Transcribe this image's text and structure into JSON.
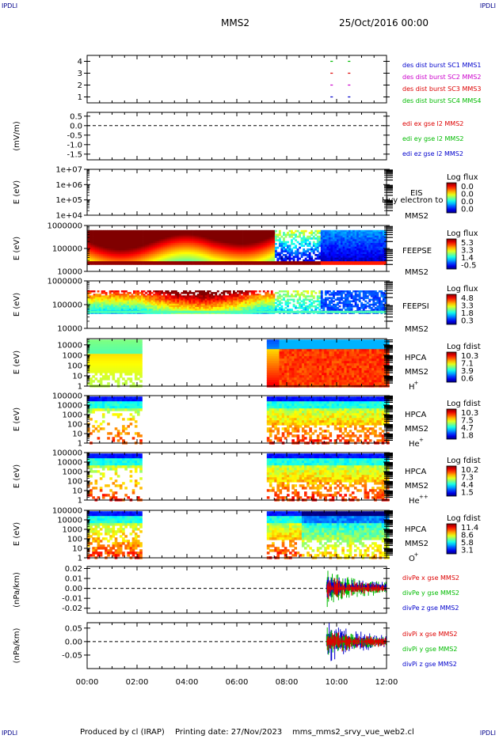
{
  "header": {
    "corner_label": "IPDLI",
    "spacecraft": "MMS2",
    "date": "25/Oct/2016 00:00"
  },
  "footer": {
    "produced_by": "Produced by cl (IRAP)",
    "printing_date": "Printing date: 27/Nov/2023",
    "script_name": "mms_mms2_srvy_vue_web2.cl"
  },
  "time_axis": {
    "ticks": [
      "00:00",
      "02:00",
      "04:00",
      "06:00",
      "08:00",
      "10:00",
      "12:00"
    ],
    "range_hours": [
      0,
      12
    ]
  },
  "colors": {
    "mms1": "#0000cc",
    "mms2": "#cc00cc",
    "mms3": "#dd0000",
    "mms4": "#00bb00",
    "x": "#dd0000",
    "y": "#00bb00",
    "z": "#0000cc"
  },
  "chart_data": [
    {
      "type": "scatter",
      "panel": "burst",
      "yticks": [
        "1",
        "2",
        "3",
        "4"
      ],
      "ylim": [
        0.5,
        4.5
      ],
      "legend": [
        {
          "text": "des dist burst SC1 MMS1",
          "color": "#0000cc"
        },
        {
          "text": "des dist burst SC2 MMS2",
          "color": "#cc00cc"
        },
        {
          "text": "des dist burst SC3 MMS3",
          "color": "#dd0000"
        },
        {
          "text": "des dist burst SC4 MMS4",
          "color": "#00bb00"
        }
      ],
      "series": [
        {
          "sc": 4,
          "color": "#00bb00",
          "segments": [
            [
              9.75,
              9.85
            ],
            [
              10.45,
              10.55
            ]
          ]
        },
        {
          "sc": 3,
          "color": "#dd0000",
          "segments": [
            [
              9.75,
              9.85
            ],
            [
              10.45,
              10.55
            ]
          ]
        },
        {
          "sc": 2,
          "color": "#cc00cc",
          "segments": [
            [
              9.75,
              9.85
            ],
            [
              10.45,
              10.55
            ]
          ]
        },
        {
          "sc": 1,
          "color": "#0000cc",
          "segments": [
            [
              9.75,
              9.85
            ],
            [
              10.45,
              10.55
            ]
          ]
        }
      ]
    },
    {
      "type": "line",
      "panel": "edi",
      "ylabel": "(mV/m)",
      "yticks": [
        "0.5",
        "0.0",
        "-0.5",
        "-1.0",
        "-1.5"
      ],
      "ytick_values": [
        0.5,
        0.0,
        -0.5,
        -1.0,
        -1.5
      ],
      "ylim": [
        -1.8,
        0.7
      ],
      "zero_line": true,
      "legend": [
        {
          "text": "edi ex gse l2 MMS2",
          "color": "#dd0000"
        },
        {
          "text": "edi ey gse l2 MMS2",
          "color": "#00bb00"
        },
        {
          "text": "edi ez gse l2 MMS2",
          "color": "#0000cc"
        }
      ]
    },
    {
      "type": "heatmap",
      "panel": "eis",
      "ylabel": "E (eV)",
      "yticks": [
        "1e+07",
        "1e+06",
        "1e+05",
        "1e+04"
      ],
      "ytick_values": [
        7,
        6,
        5,
        4
      ],
      "ylim": [
        4,
        7
      ],
      "instrument": [
        "EIS",
        "MMS2"
      ],
      "overlay_text": "Livy electron to",
      "colorbar_title": "Log flux",
      "colorbar_ticks": [
        "0.0",
        "0.0",
        "0.0",
        "0.0"
      ]
    },
    {
      "type": "heatmap",
      "panel": "feeps-e",
      "ylabel": "E (eV)",
      "yticks": [
        "1000000",
        "100000",
        "10000"
      ],
      "ytick_values": [
        6,
        5,
        4
      ],
      "ylim": [
        4,
        6
      ],
      "instrument": [
        "FEEPSE",
        "MMS2"
      ],
      "colorbar_title": "Log flux",
      "colorbar_ticks": [
        "5.3",
        "3.3",
        "1.4",
        "-0.5"
      ]
    },
    {
      "type": "heatmap",
      "panel": "feeps-i",
      "ylabel": "E (eV)",
      "yticks": [
        "1000000",
        "100000",
        "10000"
      ],
      "ytick_values": [
        6,
        5,
        4
      ],
      "ylim": [
        4,
        6
      ],
      "instrument": [
        "FEEPSI",
        "MMS2"
      ],
      "colorbar_title": "Log flux",
      "colorbar_ticks": [
        "4.8",
        "3.3",
        "1.8",
        "0.3"
      ]
    },
    {
      "type": "heatmap",
      "panel": "hpca-h",
      "ylabel": "E (eV)",
      "yticks": [
        "10000",
        "1000",
        "100",
        "10",
        "1"
      ],
      "ytick_values": [
        4,
        3,
        2,
        1,
        0
      ],
      "ylim": [
        0,
        4.6
      ],
      "instrument": [
        "HPCA",
        "MMS2"
      ],
      "species": "H",
      "species_sup": "+",
      "colorbar_title": "Log fdist",
      "colorbar_ticks": [
        "10.3",
        "7.1",
        "3.9",
        "0.6"
      ]
    },
    {
      "type": "heatmap",
      "panel": "hpca-he",
      "ylabel": "E (eV)",
      "yticks": [
        "100000",
        "10000",
        "1000",
        "100",
        "10",
        "1"
      ],
      "ytick_values": [
        5,
        4,
        3,
        2,
        1,
        0
      ],
      "ylim": [
        0,
        5
      ],
      "instrument": [
        "HPCA",
        "MMS2"
      ],
      "species": "He",
      "species_sup": "+",
      "colorbar_title": "Log fdist",
      "colorbar_ticks": [
        "10.3",
        "7.5",
        "4.7",
        "1.8"
      ]
    },
    {
      "type": "heatmap",
      "panel": "hpca-hepp",
      "ylabel": "E (eV)",
      "yticks": [
        "100000",
        "10000",
        "1000",
        "100",
        "10",
        "1"
      ],
      "ytick_values": [
        5,
        4,
        3,
        2,
        1,
        0
      ],
      "ylim": [
        0,
        5
      ],
      "instrument": [
        "HPCA",
        "MMS2"
      ],
      "species": "He",
      "species_sup": "++",
      "colorbar_title": "Log fdist",
      "colorbar_ticks": [
        "10.2",
        "7.3",
        "4.4",
        "1.5"
      ]
    },
    {
      "type": "heatmap",
      "panel": "hpca-o",
      "ylabel": "E (eV)",
      "yticks": [
        "100000",
        "10000",
        "1000",
        "100",
        "10",
        "1"
      ],
      "ytick_values": [
        5,
        4,
        3,
        2,
        1,
        0
      ],
      "ylim": [
        0,
        5
      ],
      "instrument": [
        "HPCA",
        "MMS2"
      ],
      "species": "O",
      "species_sup": "+",
      "colorbar_title": "Log fdist",
      "colorbar_ticks": [
        "11.4",
        "8.6",
        "5.8",
        "3.1"
      ]
    },
    {
      "type": "line",
      "panel": "divpe",
      "ylabel": "(nPa/km)",
      "yticks": [
        "0.02",
        "0.01",
        "0.00",
        "-0.01",
        "-0.02"
      ],
      "ytick_values": [
        0.02,
        0.01,
        0.0,
        -0.01,
        -0.02
      ],
      "ylim": [
        -0.025,
        0.022
      ],
      "zero_line": true,
      "data_start_hours": 9.6,
      "legend": [
        {
          "text": "divPe x gse MMS2",
          "color": "#dd0000"
        },
        {
          "text": "divPe y gse MMS2",
          "color": "#00bb00"
        },
        {
          "text": "divPe z gse MMS2",
          "color": "#0000cc"
        }
      ]
    },
    {
      "type": "line",
      "panel": "divpi",
      "ylabel": "(nPa/km)",
      "yticks": [
        "0.05",
        "0.00",
        "-0.05"
      ],
      "ytick_values": [
        0.05,
        0.0,
        -0.05
      ],
      "ylim": [
        -0.1,
        0.07
      ],
      "zero_line": true,
      "data_start_hours": 9.6,
      "legend": [
        {
          "text": "divPi x gse MMS2",
          "color": "#dd0000"
        },
        {
          "text": "divPi y gse MMS2",
          "color": "#00bb00"
        },
        {
          "text": "divPi z gse MMS2",
          "color": "#0000cc"
        }
      ]
    }
  ]
}
